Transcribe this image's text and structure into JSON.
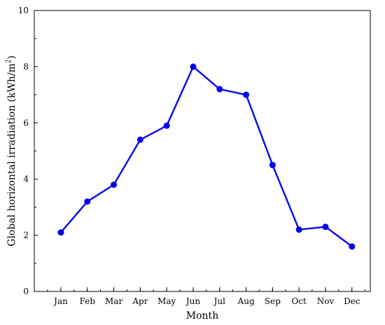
{
  "chart_data": {
    "type": "line",
    "categories": [
      "Jan",
      "Feb",
      "Mar",
      "Apr",
      "May",
      "Jun",
      "Jul",
      "Aug",
      "Sep",
      "Oct",
      "Nov",
      "Dec"
    ],
    "series": [
      {
        "values": [
          2.1,
          3.2,
          3.8,
          5.4,
          5.9,
          8.0,
          7.2,
          7.0,
          4.5,
          2.2,
          2.3,
          1.6
        ]
      }
    ],
    "title": "",
    "xlabel": "Month",
    "ylabel_main": "Global horizontal irradiation (kWh/m",
    "ylabel_sup": "2",
    "ylabel_tail": ")",
    "ylim": [
      0,
      10
    ],
    "yticks": [
      0,
      2,
      4,
      6,
      8,
      10
    ],
    "grid": false,
    "line_color": "#1010e6",
    "marker_color": "#0000ee"
  }
}
